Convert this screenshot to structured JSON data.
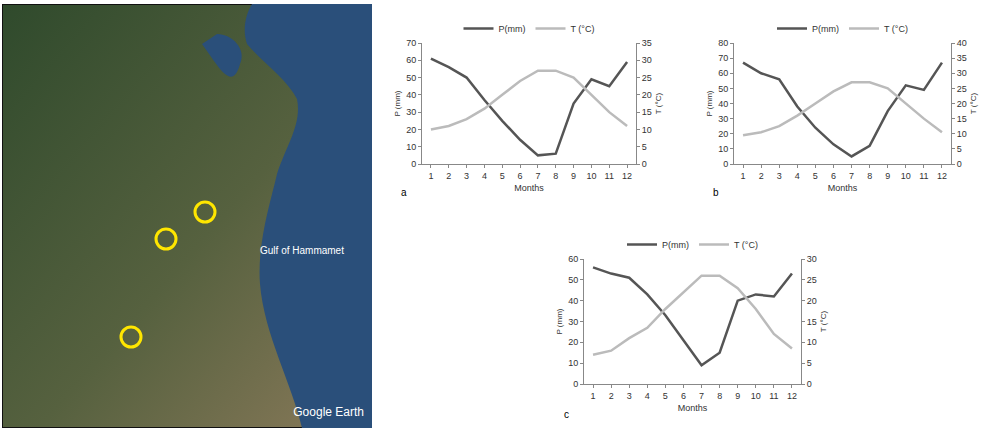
{
  "map": {
    "labels": [
      "Gulf of Hammamet",
      "Google Earth"
    ]
  },
  "chart_data": [
    {
      "type": "line",
      "panel_label": "a",
      "xlabel": "Months",
      "ylabel": "P (mm)",
      "y2label": "T (°C)",
      "x": [
        1,
        2,
        3,
        4,
        5,
        6,
        7,
        8,
        9,
        10,
        11,
        12
      ],
      "xlim": [
        0.5,
        12.5
      ],
      "xticks": [
        1,
        2,
        3,
        4,
        5,
        6,
        7,
        8,
        9,
        10,
        11,
        12
      ],
      "ylim": [
        0,
        70
      ],
      "yticks": [
        0,
        10,
        20,
        30,
        40,
        50,
        60,
        70
      ],
      "y2lim": [
        0,
        35
      ],
      "y2ticks": [
        0,
        5,
        10,
        15,
        20,
        25,
        30,
        35
      ],
      "legend": "top",
      "series": [
        {
          "name": "P(mm)",
          "color": "#555555",
          "values": [
            61,
            56,
            50,
            37,
            25,
            14,
            5,
            6,
            35,
            49,
            45,
            59
          ]
        },
        {
          "name": "T (°C)",
          "color": "#bbbbbb",
          "axis": "y2",
          "values": [
            10,
            11,
            13,
            16,
            20,
            24,
            27,
            27,
            25,
            20,
            15,
            11
          ]
        }
      ]
    },
    {
      "type": "line",
      "panel_label": "b",
      "xlabel": "Months",
      "ylabel": "P (mm)",
      "y2label": "T (°C)",
      "x": [
        1,
        2,
        3,
        4,
        5,
        6,
        7,
        8,
        9,
        10,
        11,
        12
      ],
      "xlim": [
        0.5,
        12.5
      ],
      "xticks": [
        1,
        2,
        3,
        4,
        5,
        6,
        7,
        8,
        9,
        10,
        11,
        12
      ],
      "ylim": [
        0,
        80
      ],
      "yticks": [
        0,
        10,
        20,
        30,
        40,
        50,
        60,
        70,
        80
      ],
      "y2lim": [
        0,
        40
      ],
      "y2ticks": [
        0,
        5,
        10,
        15,
        20,
        25,
        30,
        35,
        40
      ],
      "legend": "top",
      "series": [
        {
          "name": "P(mm)",
          "color": "#555555",
          "values": [
            67,
            60,
            56,
            38,
            24,
            13,
            5,
            12,
            35,
            52,
            49,
            67
          ]
        },
        {
          "name": "T (°C)",
          "color": "#bbbbbb",
          "axis": "y2",
          "values": [
            9.5,
            10.5,
            12.5,
            16,
            20,
            24,
            27,
            27,
            25,
            20,
            15,
            10.5
          ]
        }
      ]
    },
    {
      "type": "line",
      "panel_label": "c",
      "xlabel": "Months",
      "ylabel": "P (mm)",
      "y2label": "T (°C)",
      "x": [
        1,
        2,
        3,
        4,
        5,
        6,
        7,
        8,
        9,
        10,
        11,
        12
      ],
      "xlim": [
        0.5,
        12.5
      ],
      "xticks": [
        1,
        2,
        3,
        4,
        5,
        6,
        7,
        8,
        9,
        10,
        11,
        12
      ],
      "ylim": [
        0,
        60
      ],
      "yticks": [
        0,
        10,
        20,
        30,
        40,
        50,
        60
      ],
      "y2lim": [
        0,
        30
      ],
      "y2ticks": [
        0,
        5,
        10,
        15,
        20,
        25,
        30
      ],
      "legend": "top",
      "series": [
        {
          "name": "P(mm)",
          "color": "#555555",
          "values": [
            56,
            53,
            51,
            43,
            33,
            21,
            9,
            15,
            40,
            43,
            42,
            53
          ]
        },
        {
          "name": "T (°C)",
          "color": "#bbbbbb",
          "axis": "y2",
          "values": [
            7,
            8,
            11,
            13.5,
            18,
            22,
            26,
            26,
            23,
            18,
            12,
            8.5
          ]
        }
      ]
    }
  ]
}
